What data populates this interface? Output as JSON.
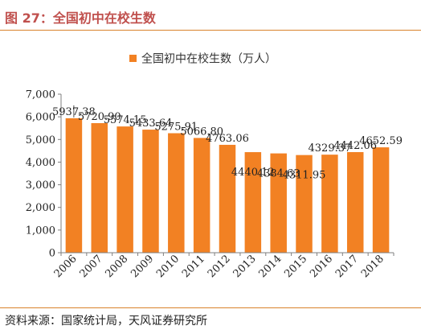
{
  "header": {
    "title": "图 27：全国初中在校生数"
  },
  "footer": {
    "source": "资料来源：国家统计局，天风证券研究所"
  },
  "colors": {
    "accent": "#f28123",
    "rule": "#d9822b",
    "title": "#c0504d"
  },
  "chart_data": {
    "type": "bar",
    "title": "",
    "xlabel": "",
    "ylabel": "",
    "categories": [
      "2006",
      "2007",
      "2008",
      "2009",
      "2010",
      "2011",
      "2012",
      "2013",
      "2014",
      "2015",
      "2016",
      "2017",
      "2018"
    ],
    "series": [
      {
        "name": "全国初中在校生数（万人）",
        "values": [
          5937.38,
          5720.9,
          5574.15,
          5433.64,
          5275.91,
          5066.8,
          4763.06,
          4440.12,
          4384.63,
          4311.95,
          4329.37,
          4442.06,
          4652.59
        ],
        "labels": [
          "5937.38",
          "5720.90",
          "5574.15",
          "5433.64",
          "5275.91",
          "5066.80",
          "4763.06",
          "4440.12",
          "4384.63",
          "4311.95",
          "4329.37",
          "4442.06",
          "4652.59"
        ]
      }
    ],
    "ylim": [
      0,
      7000
    ],
    "yticks": [
      0,
      1000,
      2000,
      3000,
      4000,
      5000,
      6000,
      7000
    ],
    "ytick_labels": [
      "0",
      "1,000",
      "2,000",
      "3,000",
      "4,000",
      "5,000",
      "6,000",
      "7,000"
    ],
    "legend_position": "top-center",
    "grid": false
  }
}
